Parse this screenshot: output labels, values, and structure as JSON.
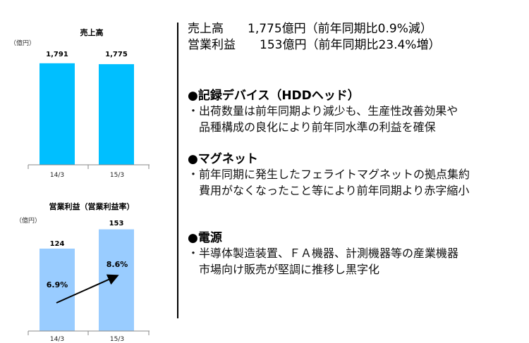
{
  "chart_data": [
    {
      "type": "bar",
      "title": "売上高",
      "unit": "（億円）",
      "categories": [
        "14/3",
        "15/3"
      ],
      "values": [
        1791,
        1775
      ],
      "value_labels": [
        "1,791",
        "1,775"
      ],
      "ylim": [
        0,
        2000
      ],
      "colors": [
        "#00bfff",
        "#00bfff"
      ],
      "grid": false
    },
    {
      "type": "bar",
      "title": "営業利益（営業利益率）",
      "unit": "（億円）",
      "categories": [
        "14/3",
        "15/3"
      ],
      "values": [
        124,
        153
      ],
      "value_labels": [
        "124",
        "153"
      ],
      "rates": [
        "6.9%",
        "8.6%"
      ],
      "ylim": [
        0,
        160
      ],
      "colors": [
        "#99ccff",
        "#99ccff"
      ],
      "grid": false
    }
  ],
  "summary": {
    "sales_line": "売上高　　1,775億円（前年同期比0.9%減）",
    "profit_line": "営業利益　　153億円（前年同期比23.4%増）"
  },
  "sections": [
    {
      "heading": "●記録デバイス（HDDヘッド）",
      "lines": [
        "・出荷数量は前年同期より減少も、生産性改善効果や",
        "　品種構成の良化により前年同水準の利益を確保"
      ]
    },
    {
      "heading": "●マグネット",
      "lines": [
        "・前年同期に発生したフェライトマグネットの拠点集約",
        "　費用がなくなったこと等により前年同期より赤字縮小"
      ]
    },
    {
      "heading": "●電源",
      "lines": [
        "・半導体製造装置、ＦＡ機器、計測機器等の産業機器",
        "　市場向け販売が堅調に推移し黒字化"
      ]
    }
  ]
}
